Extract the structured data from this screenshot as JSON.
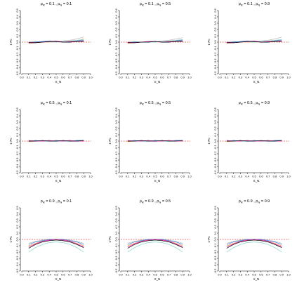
{
  "chart_data": {
    "type": "line",
    "layout": {
      "rows": 3,
      "cols": 3
    },
    "xlabel": "π_N",
    "ylabel": "1-Pc",
    "xlim": [
      0.0,
      1.0
    ],
    "ylim": [
      -0.5,
      0.5
    ],
    "x_ticks": [
      0.0,
      0.1,
      0.2,
      0.3,
      0.4,
      0.5,
      0.6,
      0.7,
      0.8,
      0.9,
      1.0
    ],
    "y_ticks": [
      0.5,
      0.4,
      0.3,
      0.2,
      0.1,
      0.0,
      -0.1,
      -0.2,
      -0.3,
      -0.4,
      -0.5
    ],
    "reference_line": {
      "y": 0.0,
      "style": "dashed",
      "color": "#cc0000"
    },
    "x": [
      0.1,
      0.2,
      0.3,
      0.4,
      0.5,
      0.6,
      0.7,
      0.8,
      0.9
    ],
    "series_colors": [
      "#000000",
      "#e41a9c",
      "#2b6fd6",
      "#7fd3c8",
      "#ff9d5c",
      "#b8b8b8"
    ],
    "panels": [
      {
        "title_left": "ρ",
        "title_left_sub": "R",
        "title_left_val": "= 0.1 ,",
        "title_right": "ρ",
        "title_right_sub": "N",
        "title_right_val": "= 0.1",
        "series": [
          [
            -0.01,
            -0.01,
            0.0,
            0.01,
            0.01,
            0.0,
            0.0,
            0.01,
            0.01
          ],
          [
            0.0,
            -0.01,
            0.0,
            0.01,
            0.02,
            0.0,
            0.01,
            0.01,
            0.02
          ],
          [
            -0.01,
            0.0,
            0.01,
            0.02,
            0.01,
            0.0,
            0.0,
            0.02,
            0.03
          ],
          [
            0.0,
            0.0,
            0.0,
            0.01,
            0.0,
            0.01,
            0.02,
            0.03,
            0.04
          ],
          [
            -0.02,
            -0.01,
            0.0,
            0.0,
            0.01,
            0.0,
            0.01,
            0.02,
            0.05
          ],
          [
            0.0,
            0.01,
            0.0,
            0.0,
            0.0,
            0.02,
            0.03,
            0.05,
            0.08
          ]
        ]
      },
      {
        "title_left": "ρ",
        "title_left_sub": "R",
        "title_left_val": "= 0.1 ,",
        "title_right": "ρ",
        "title_right_sub": "N",
        "title_right_val": "= 0.5",
        "series": [
          [
            -0.01,
            -0.01,
            0.0,
            0.0,
            0.01,
            0.0,
            0.0,
            0.01,
            0.01
          ],
          [
            0.0,
            -0.01,
            0.0,
            0.01,
            0.01,
            0.0,
            0.01,
            0.01,
            0.02
          ],
          [
            -0.01,
            0.0,
            0.0,
            0.01,
            0.01,
            0.0,
            0.0,
            0.02,
            0.03
          ],
          [
            0.0,
            0.0,
            0.0,
            0.0,
            0.0,
            0.01,
            0.02,
            0.03,
            0.04
          ],
          [
            -0.02,
            -0.01,
            0.0,
            0.0,
            0.01,
            0.0,
            0.01,
            0.02,
            0.04
          ],
          [
            0.0,
            0.01,
            0.0,
            0.0,
            0.0,
            0.02,
            0.03,
            0.05,
            0.07
          ]
        ]
      },
      {
        "title_left": "ρ",
        "title_left_sub": "R",
        "title_left_val": "= 0.1 ,",
        "title_right": "ρ",
        "title_right_sub": "N",
        "title_right_val": "= 0.9",
        "series": [
          [
            -0.01,
            -0.01,
            0.0,
            0.01,
            0.01,
            0.0,
            0.0,
            0.01,
            0.01
          ],
          [
            0.0,
            -0.01,
            0.0,
            0.01,
            0.02,
            0.0,
            0.01,
            0.01,
            0.02
          ],
          [
            -0.01,
            0.0,
            0.01,
            0.02,
            0.01,
            0.0,
            0.0,
            0.02,
            0.03
          ],
          [
            0.0,
            0.0,
            0.0,
            0.01,
            0.0,
            0.01,
            0.02,
            0.03,
            0.04
          ],
          [
            -0.02,
            -0.01,
            0.0,
            0.0,
            0.01,
            0.0,
            0.01,
            0.02,
            0.04
          ],
          [
            0.0,
            0.01,
            0.0,
            0.0,
            0.0,
            0.02,
            0.03,
            0.05,
            0.08
          ]
        ]
      },
      {
        "title_left": "ρ",
        "title_left_sub": "R",
        "title_left_val": "= 0.5 ,",
        "title_right": "ρ",
        "title_right_sub": "N",
        "title_right_val": "= 0.1",
        "series": [
          [
            0.0,
            0.0,
            0.01,
            0.0,
            0.0,
            0.01,
            0.0,
            0.0,
            0.01
          ],
          [
            0.01,
            0.0,
            0.0,
            0.01,
            0.0,
            0.0,
            0.01,
            0.0,
            0.0
          ],
          [
            0.0,
            0.01,
            0.0,
            0.0,
            0.01,
            0.0,
            0.0,
            0.01,
            0.01
          ],
          [
            0.0,
            0.0,
            0.0,
            0.01,
            0.0,
            0.0,
            0.01,
            0.0,
            0.01
          ],
          [
            -0.01,
            0.0,
            0.0,
            0.0,
            0.01,
            0.0,
            0.0,
            0.0,
            0.0
          ],
          [
            0.0,
            0.0,
            0.01,
            0.0,
            0.0,
            0.0,
            0.0,
            0.01,
            0.01
          ]
        ]
      },
      {
        "title_left": "ρ",
        "title_left_sub": "R",
        "title_left_val": "= 0.5 ,",
        "title_right": "ρ",
        "title_right_sub": "N",
        "title_right_val": "= 0.5",
        "series": [
          [
            0.0,
            0.0,
            0.01,
            0.0,
            0.0,
            0.01,
            0.0,
            0.0,
            0.01
          ],
          [
            0.01,
            0.0,
            0.0,
            0.01,
            0.0,
            0.0,
            0.01,
            0.0,
            0.0
          ],
          [
            0.0,
            0.01,
            0.0,
            0.0,
            0.01,
            0.0,
            0.0,
            0.01,
            0.01
          ],
          [
            0.0,
            0.0,
            0.0,
            0.01,
            0.0,
            0.0,
            0.01,
            0.0,
            0.01
          ],
          [
            -0.01,
            0.0,
            0.0,
            0.0,
            0.01,
            0.0,
            0.0,
            0.0,
            0.0
          ],
          [
            0.0,
            0.0,
            0.01,
            0.0,
            0.0,
            0.0,
            0.0,
            0.01,
            0.01
          ]
        ]
      },
      {
        "title_left": "ρ",
        "title_left_sub": "R",
        "title_left_val": "= 0.5 ,",
        "title_right": "ρ",
        "title_right_sub": "N",
        "title_right_val": "= 0.9",
        "series": [
          [
            0.0,
            0.0,
            0.01,
            0.0,
            0.0,
            0.01,
            0.0,
            0.0,
            0.01
          ],
          [
            0.01,
            0.0,
            0.0,
            0.01,
            0.0,
            0.0,
            0.01,
            0.0,
            0.0
          ],
          [
            0.0,
            0.01,
            0.0,
            0.0,
            0.01,
            0.0,
            0.0,
            0.01,
            0.01
          ],
          [
            0.0,
            0.0,
            0.0,
            0.01,
            0.0,
            0.0,
            0.01,
            0.0,
            0.01
          ],
          [
            -0.01,
            0.0,
            0.0,
            0.0,
            0.01,
            0.0,
            0.0,
            0.0,
            0.0
          ],
          [
            0.0,
            0.0,
            0.01,
            0.0,
            0.0,
            0.0,
            0.0,
            0.01,
            0.01
          ]
        ]
      },
      {
        "title_left": "ρ",
        "title_left_sub": "R",
        "title_left_val": "= 0.9 ,",
        "title_right": "ρ",
        "title_right_sub": "N",
        "title_right_val": "= 0.1",
        "series": [
          [
            -0.14,
            -0.08,
            -0.04,
            -0.02,
            -0.01,
            -0.02,
            -0.04,
            -0.08,
            -0.13
          ],
          [
            -0.12,
            -0.07,
            -0.03,
            -0.01,
            0.0,
            -0.01,
            -0.03,
            -0.07,
            -0.12
          ],
          [
            -0.08,
            -0.04,
            -0.02,
            0.0,
            0.0,
            0.0,
            -0.02,
            -0.04,
            -0.08
          ],
          [
            -0.2,
            -0.13,
            -0.08,
            -0.05,
            -0.04,
            -0.05,
            -0.08,
            -0.13,
            -0.2
          ],
          [
            -0.1,
            -0.06,
            -0.03,
            -0.01,
            0.0,
            -0.01,
            -0.03,
            -0.06,
            -0.1
          ],
          [
            -0.06,
            -0.03,
            -0.01,
            0.0,
            0.0,
            0.0,
            -0.01,
            -0.03,
            -0.06
          ]
        ]
      },
      {
        "title_left": "ρ",
        "title_left_sub": "R",
        "title_left_val": "= 0.9 ,",
        "title_right": "ρ",
        "title_right_sub": "N",
        "title_right_val": "= 0.5",
        "series": [
          [
            -0.14,
            -0.08,
            -0.04,
            -0.02,
            -0.01,
            -0.02,
            -0.04,
            -0.08,
            -0.13
          ],
          [
            -0.12,
            -0.07,
            -0.03,
            -0.01,
            0.0,
            -0.01,
            -0.03,
            -0.07,
            -0.12
          ],
          [
            -0.08,
            -0.04,
            -0.02,
            0.0,
            0.0,
            0.0,
            -0.02,
            -0.04,
            -0.08
          ],
          [
            -0.2,
            -0.13,
            -0.08,
            -0.05,
            -0.04,
            -0.05,
            -0.08,
            -0.13,
            -0.2
          ],
          [
            -0.1,
            -0.06,
            -0.03,
            -0.01,
            0.0,
            -0.01,
            -0.03,
            -0.06,
            -0.1
          ],
          [
            -0.06,
            -0.03,
            -0.01,
            0.0,
            0.0,
            0.0,
            -0.01,
            -0.03,
            -0.06
          ]
        ]
      },
      {
        "title_left": "ρ",
        "title_left_sub": "R",
        "title_left_val": "= 0.9 ,",
        "title_right": "ρ",
        "title_right_sub": "N",
        "title_right_val": "= 0.9",
        "series": [
          [
            -0.14,
            -0.08,
            -0.04,
            -0.02,
            -0.01,
            -0.02,
            -0.04,
            -0.08,
            -0.13
          ],
          [
            -0.12,
            -0.07,
            -0.03,
            -0.01,
            0.0,
            -0.01,
            -0.03,
            -0.07,
            -0.12
          ],
          [
            -0.08,
            -0.04,
            -0.02,
            0.0,
            0.0,
            0.0,
            -0.02,
            -0.04,
            -0.08
          ],
          [
            -0.2,
            -0.13,
            -0.08,
            -0.05,
            -0.04,
            -0.05,
            -0.08,
            -0.13,
            -0.2
          ],
          [
            -0.1,
            -0.06,
            -0.03,
            -0.01,
            0.0,
            -0.01,
            -0.03,
            -0.06,
            -0.1
          ],
          [
            -0.06,
            -0.03,
            -0.01,
            0.0,
            0.0,
            0.0,
            -0.01,
            -0.03,
            -0.06
          ]
        ]
      }
    ]
  }
}
